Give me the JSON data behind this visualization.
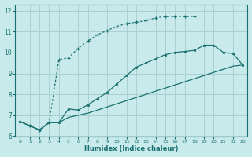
{
  "xlabel": "Humidex (Indice chaleur)",
  "bg_color": "#c8eaea",
  "grid_color": "#aad0d0",
  "line_color": "#1a7070",
  "xlim": [
    -0.5,
    23.5
  ],
  "ylim": [
    6,
    12.3
  ],
  "yticks": [
    6,
    7,
    8,
    9,
    10,
    11,
    12
  ],
  "xticks": [
    0,
    1,
    2,
    3,
    4,
    5,
    6,
    7,
    8,
    9,
    10,
    11,
    12,
    13,
    14,
    15,
    16,
    17,
    18,
    19,
    20,
    21,
    22,
    23
  ],
  "curve_top_x": [
    0,
    1,
    2,
    3,
    4,
    5,
    6,
    7,
    8,
    9,
    10,
    11,
    12,
    13,
    14,
    15,
    16,
    17,
    18
  ],
  "curve_top_y": [
    6.7,
    6.5,
    6.3,
    6.65,
    9.65,
    9.75,
    10.2,
    10.55,
    10.85,
    11.05,
    11.25,
    11.38,
    11.45,
    11.52,
    11.65,
    11.72,
    11.72,
    11.72,
    11.72
  ],
  "curve_mid_x": [
    0,
    1,
    2,
    3,
    4,
    5,
    6,
    7,
    8,
    9,
    10,
    11,
    12,
    13,
    14,
    15,
    16,
    17,
    18,
    19,
    20,
    21,
    22,
    23
  ],
  "curve_mid_y": [
    6.7,
    6.5,
    6.3,
    6.65,
    6.65,
    7.3,
    7.25,
    7.5,
    7.8,
    8.1,
    8.5,
    8.9,
    9.3,
    9.5,
    9.7,
    9.9,
    10.0,
    10.05,
    10.1,
    10.35,
    10.35,
    10.0,
    9.95,
    9.4
  ],
  "curve_bot_x": [
    0,
    1,
    2,
    3,
    4,
    5,
    6,
    7,
    8,
    9,
    10,
    11,
    12,
    13,
    14,
    15,
    16,
    17,
    18,
    19,
    20,
    21,
    22,
    23
  ],
  "curve_bot_y": [
    6.7,
    6.5,
    6.3,
    6.65,
    6.65,
    6.9,
    7.0,
    7.1,
    7.25,
    7.4,
    7.55,
    7.7,
    7.85,
    8.0,
    8.15,
    8.3,
    8.45,
    8.6,
    8.75,
    8.9,
    9.05,
    9.2,
    9.35,
    9.4
  ]
}
